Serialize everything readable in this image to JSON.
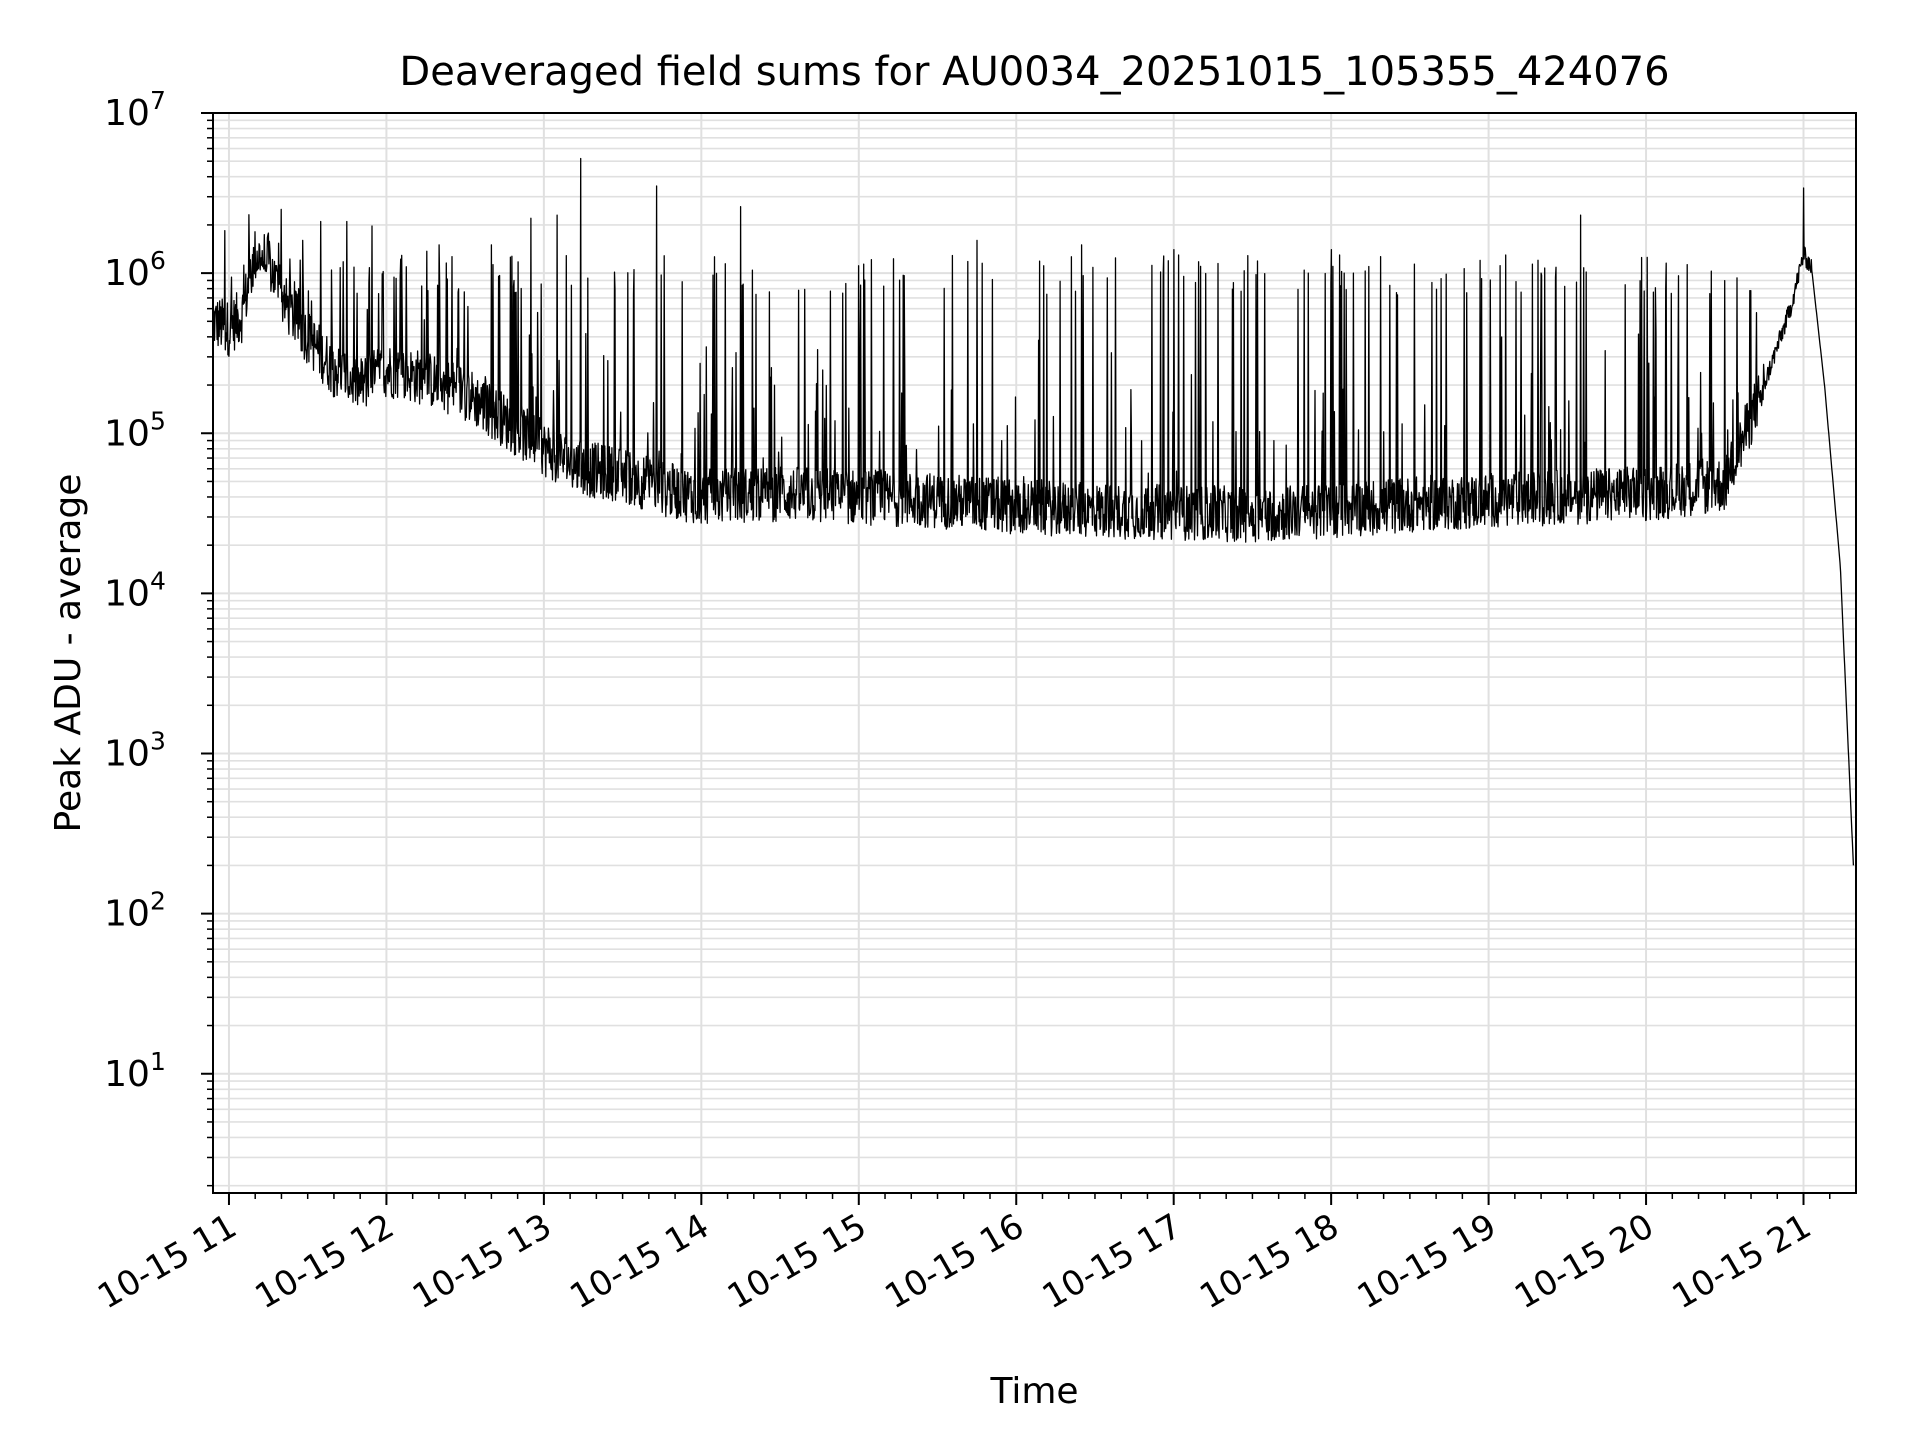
{
  "chart_data": {
    "type": "line",
    "title": "Deaveraged field sums for AU0034_20251015_105355_424076",
    "xlabel": "Time",
    "ylabel": "Peak ADU - average",
    "yscale": "log",
    "ylim": [
      1.8,
      10000000
    ],
    "xlim": [
      "2025-10-15T10:53:55",
      "2025-10-15T21:20:00"
    ],
    "grid": true,
    "x_tick_labels": [
      "10-15 11",
      "10-15 12",
      "10-15 13",
      "10-15 14",
      "10-15 15",
      "10-15 16",
      "10-15 17",
      "10-15 18",
      "10-15 19",
      "10-15 20",
      "10-15 21"
    ],
    "x_ticks": [
      "2025-10-15T11:00",
      "2025-10-15T12:00",
      "2025-10-15T13:00",
      "2025-10-15T14:00",
      "2025-10-15T15:00",
      "2025-10-15T16:00",
      "2025-10-15T17:00",
      "2025-10-15T18:00",
      "2025-10-15T19:00",
      "2025-10-15T20:00",
      "2025-10-15T21:00"
    ],
    "y_ticks": [
      {
        "value": 10,
        "base": "10",
        "exp": "1"
      },
      {
        "value": 100,
        "base": "10",
        "exp": "2"
      },
      {
        "value": 1000,
        "base": "10",
        "exp": "3"
      },
      {
        "value": 10000,
        "base": "10",
        "exp": "4"
      },
      {
        "value": 100000,
        "base": "10",
        "exp": "5"
      },
      {
        "value": 1000000,
        "base": "10",
        "exp": "6"
      },
      {
        "value": 10000000,
        "base": "10",
        "exp": "7"
      }
    ],
    "line_color": "#000000",
    "grid_color": "#e0e0e0",
    "series": [
      {
        "x": [
          "2025-10-15T10:53:55",
          "2025-10-15T11:00",
          "2025-10-15T11:05",
          "2025-10-15T11:10",
          "2025-10-15T11:15",
          "2025-10-15T11:20",
          "2025-10-15T11:30",
          "2025-10-15T11:40",
          "2025-10-15T11:50",
          "2025-10-15T12:00",
          "2025-10-15T12:15",
          "2025-10-15T12:30",
          "2025-10-15T12:45",
          "2025-10-15T13:00",
          "2025-10-15T13:15",
          "2025-10-15T13:30",
          "2025-10-15T13:45",
          "2025-10-15T14:00",
          "2025-10-15T14:30",
          "2025-10-15T15:00",
          "2025-10-15T15:30",
          "2025-10-15T16:00",
          "2025-10-15T16:30",
          "2025-10-15T17:00",
          "2025-10-15T17:30",
          "2025-10-15T18:00",
          "2025-10-15T18:30",
          "2025-10-15T19:00",
          "2025-10-15T19:30",
          "2025-10-15T20:00",
          "2025-10-15T20:30",
          "2025-10-15T20:45",
          "2025-10-15T20:55",
          "2025-10-15T21:00",
          "2025-10-15T21:03",
          "2025-10-15T21:08",
          "2025-10-15T21:14",
          "2025-10-15T21:19"
        ],
        "baseline": [
          500000,
          450000,
          550000,
          1300000,
          1200000,
          700000,
          400000,
          250000,
          200000,
          250000,
          220000,
          180000,
          120000,
          80000,
          60000,
          55000,
          45000,
          40000,
          42000,
          40000,
          38000,
          35000,
          33000,
          32000,
          31000,
          33000,
          36000,
          38000,
          40000,
          42000,
          48000,
          200000,
          600000,
          1300000,
          1100000,
          200000,
          15000,
          200
        ],
        "peaks": [
          [
            "2025-10-15T11:20",
            2500000
          ],
          [
            "2025-10-15T11:35",
            2100000
          ],
          [
            "2025-10-15T11:45",
            2100000
          ],
          [
            "2025-10-15T12:20",
            1500000
          ],
          [
            "2025-10-15T12:40",
            1500000
          ],
          [
            "2025-10-15T12:55",
            2200000
          ],
          [
            "2025-10-15T13:05",
            2300000
          ],
          [
            "2025-10-15T13:14",
            5200000
          ],
          [
            "2025-10-15T13:43",
            3500000
          ],
          [
            "2025-10-15T14:15",
            2600000
          ],
          [
            "2025-10-15T15:45",
            1600000
          ],
          [
            "2025-10-15T16:25",
            1500000
          ],
          [
            "2025-10-15T17:00",
            1400000
          ],
          [
            "2025-10-15T18:00",
            1400000
          ],
          [
            "2025-10-15T19:35",
            2300000
          ],
          [
            "2025-10-15T21:00",
            3400000
          ]
        ]
      }
    ]
  }
}
